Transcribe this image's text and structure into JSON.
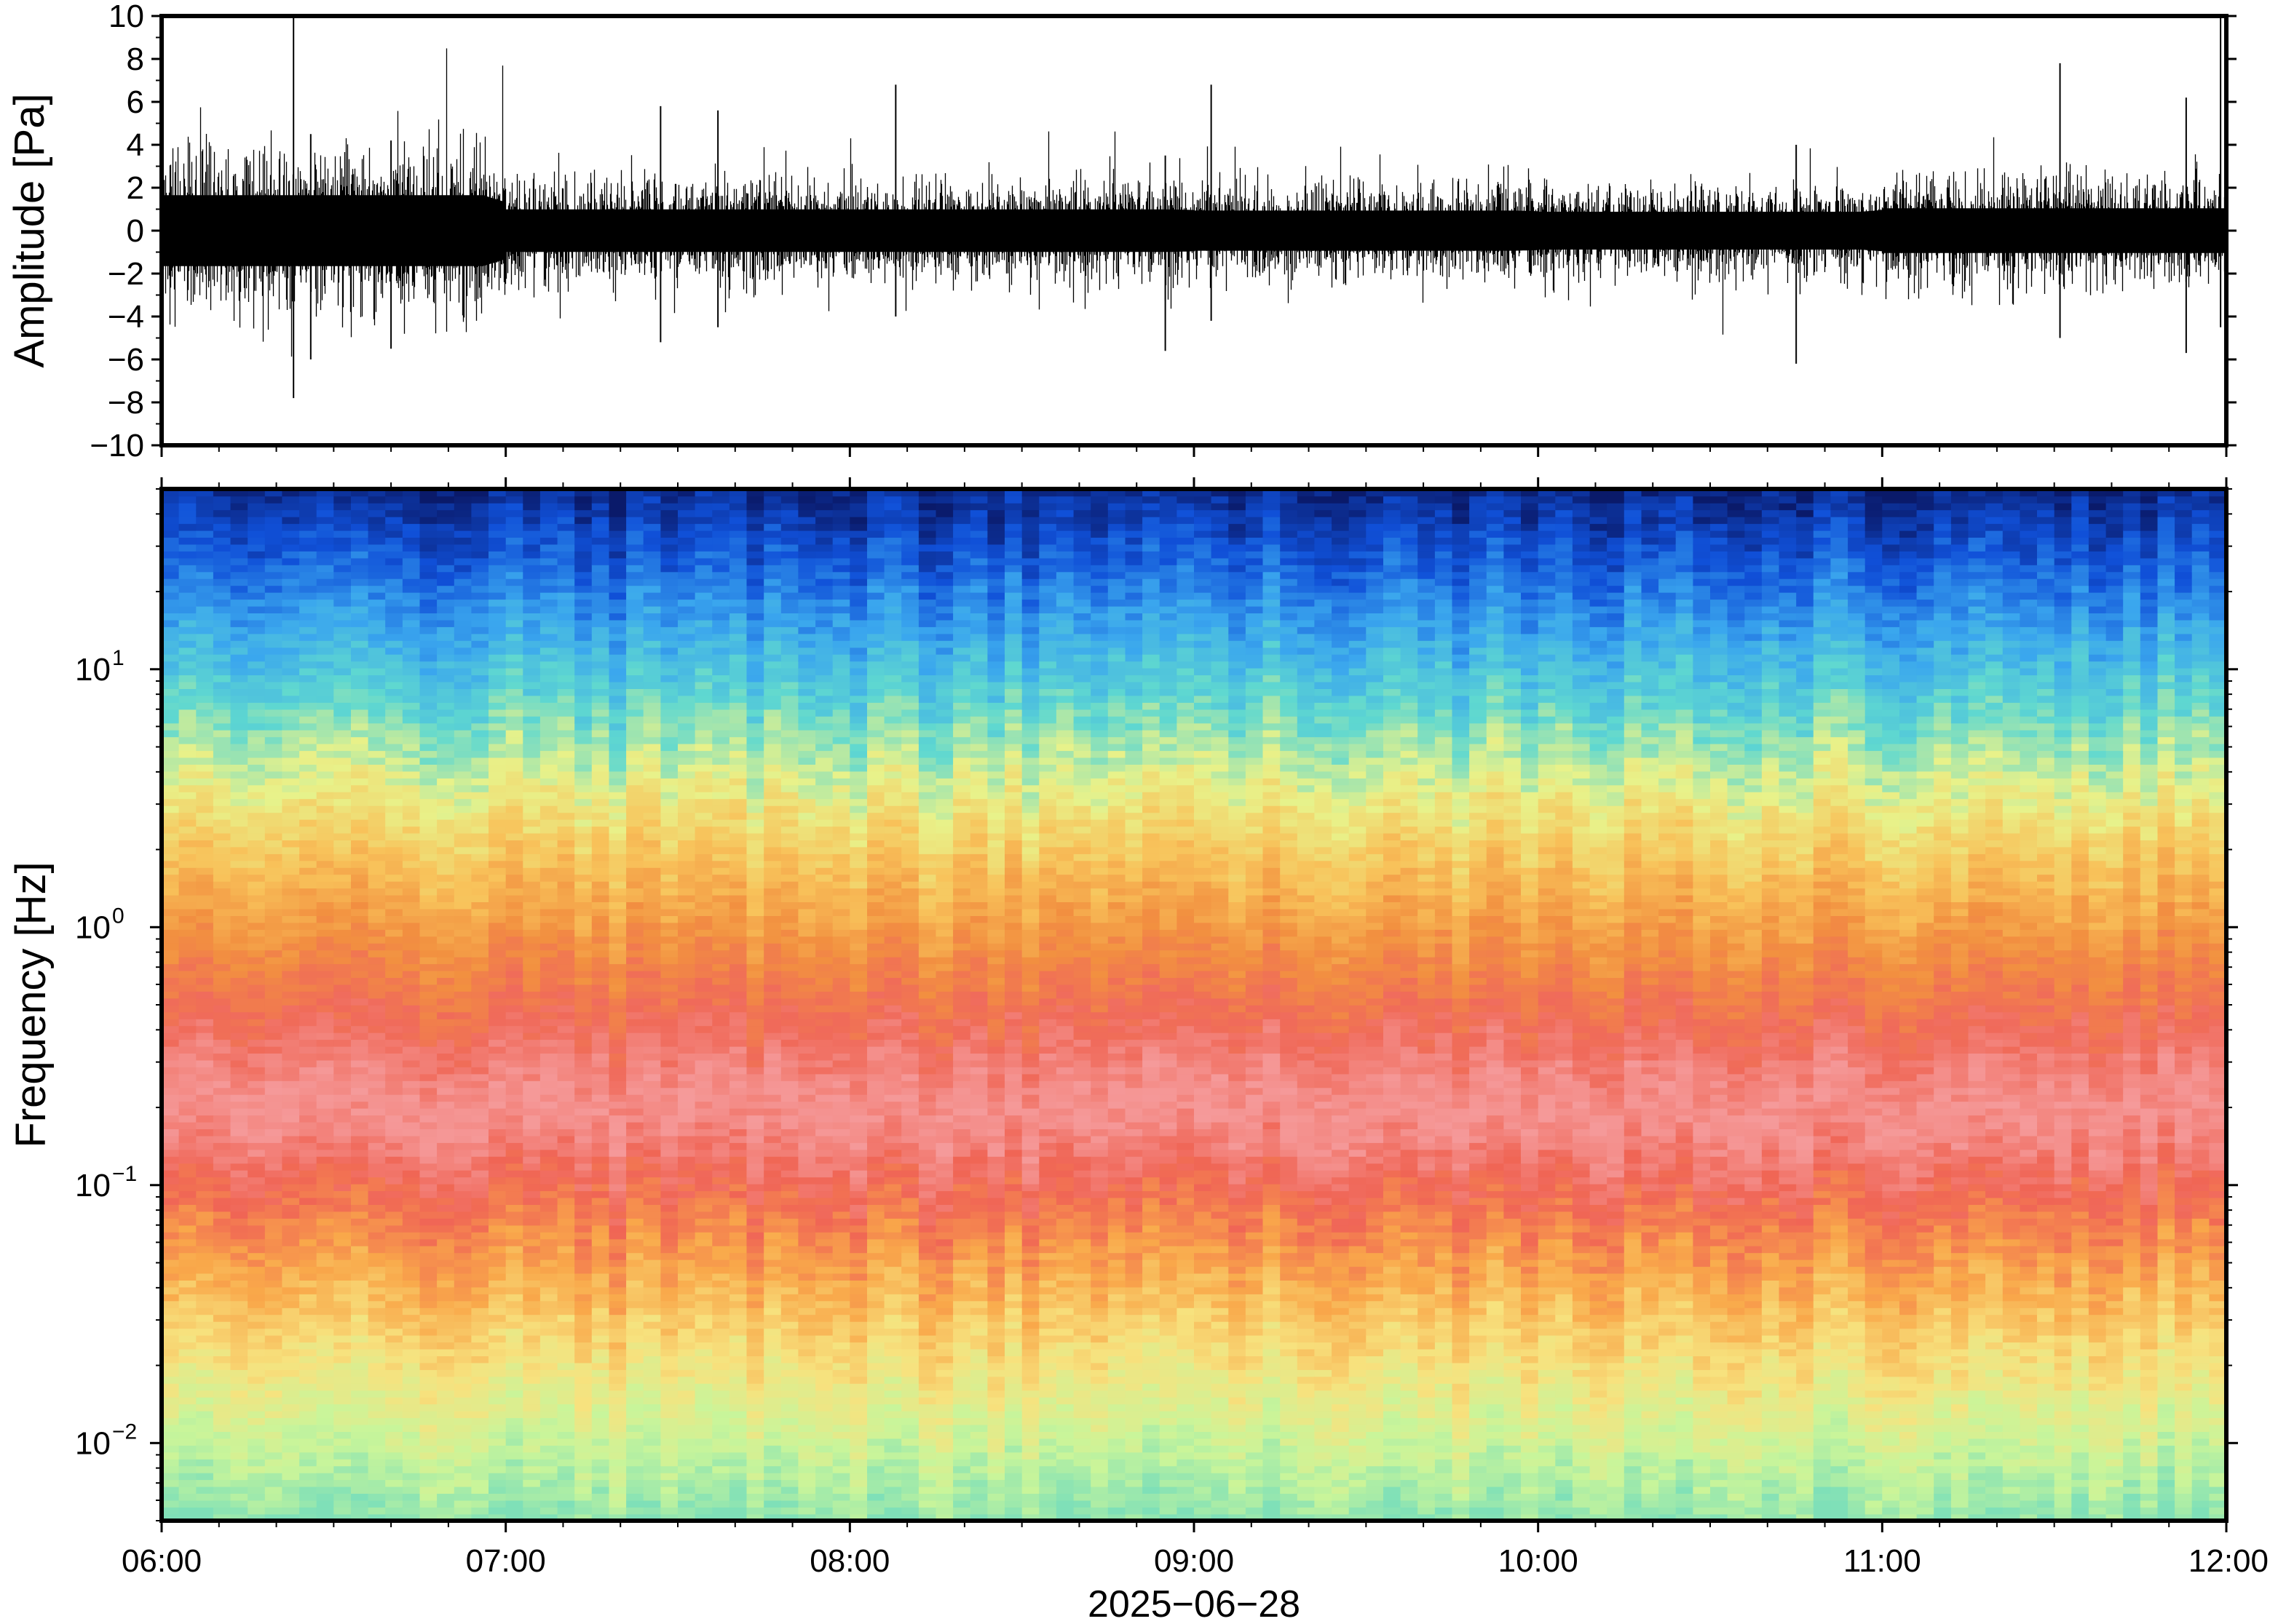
{
  "chart_data": [
    {
      "type": "line",
      "panel": "waveform",
      "ylabel": "Amplitude [Pa]",
      "ylim": [
        -10,
        10
      ],
      "yticks": [
        -10,
        -8,
        -6,
        -4,
        -2,
        0,
        2,
        4,
        6,
        8,
        10
      ],
      "ytick_labels": [
        "−10",
        "−8",
        "−6",
        "−4",
        "−2",
        "0",
        "2",
        "4",
        "6",
        "8",
        "10"
      ],
      "x_range": [
        "06:00",
        "12:00"
      ],
      "color": "#000000",
      "envelope_segments": [
        {
          "start": "06:00",
          "end": "07:00",
          "amplitude": 3.0
        },
        {
          "start": "07:00",
          "end": "08:00",
          "amplitude": 1.8
        },
        {
          "start": "08:00",
          "end": "09:00",
          "amplitude": 1.8
        },
        {
          "start": "09:00",
          "end": "10:00",
          "amplitude": 1.7
        },
        {
          "start": "10:00",
          "end": "11:00",
          "amplitude": 1.6
        },
        {
          "start": "11:00",
          "end": "12:00",
          "amplitude": 1.9
        }
      ],
      "spikes": [
        {
          "time": "06:23",
          "max": 10,
          "min": -7.8
        },
        {
          "time": "06:26",
          "max": 4.5,
          "min": -6.0
        },
        {
          "time": "06:40",
          "max": 4.2,
          "min": -5.5
        },
        {
          "time": "07:27",
          "max": 5.8,
          "min": -5.2
        },
        {
          "time": "07:37",
          "max": 5.6,
          "min": -4.5
        },
        {
          "time": "08:08",
          "max": 6.8,
          "min": -4.0
        },
        {
          "time": "09:03",
          "max": 6.8,
          "min": -4.2
        },
        {
          "time": "08:55",
          "max": 3.5,
          "min": -5.6
        },
        {
          "time": "10:45",
          "max": 4.0,
          "min": -6.2
        },
        {
          "time": "11:31",
          "max": 7.8,
          "min": -5.0
        },
        {
          "time": "11:53",
          "max": 6.2,
          "min": -5.7
        },
        {
          "time": "11:59",
          "max": 10,
          "min": -4.5
        }
      ]
    },
    {
      "type": "heatmap",
      "panel": "spectrogram",
      "ylabel": "Frequency [Hz]",
      "yscale": "log",
      "ylim": [
        0.005,
        50
      ],
      "yticks": [
        {
          "value": 0.01,
          "base": "10",
          "exp": "−2"
        },
        {
          "value": 0.1,
          "base": "10",
          "exp": "−1"
        },
        {
          "value": 1,
          "base": "10",
          "exp": "0"
        },
        {
          "value": 10,
          "base": "10",
          "exp": "1"
        }
      ],
      "x_range": [
        "06:00",
        "12:00"
      ],
      "colormap": "rainbow",
      "colormap_stops": [
        "#7fe0b8",
        "#c9f59a",
        "#f7e27e",
        "#f9a84a",
        "#f06555",
        "#f59a9a",
        "#f06a5a",
        "#f29040",
        "#f8c25a",
        "#e8f28a",
        "#5fd8d0",
        "#3aa6ee",
        "#1050d8",
        "#0a1a6a"
      ],
      "frequency_profile": [
        {
          "f": 0.005,
          "level": 0.08
        },
        {
          "f": 0.008,
          "level": 0.12
        },
        {
          "f": 0.012,
          "level": 0.22
        },
        {
          "f": 0.018,
          "level": 0.33
        },
        {
          "f": 0.03,
          "level": 0.45
        },
        {
          "f": 0.07,
          "level": 0.52
        },
        {
          "f": 0.3,
          "level": 0.44
        },
        {
          "f": 1.0,
          "level": 0.35
        },
        {
          "f": 3.0,
          "level": 0.28
        },
        {
          "f": 8.0,
          "level": 0.2
        },
        {
          "f": 15.0,
          "level": 0.13
        },
        {
          "f": 30.0,
          "level": 0.06
        },
        {
          "f": 50.0,
          "level": 0.0
        }
      ]
    }
  ],
  "x_axis": {
    "tick_labels": [
      "06:00",
      "07:00",
      "08:00",
      "09:00",
      "10:00",
      "11:00",
      "12:00"
    ],
    "date_label": "2025−06−28"
  }
}
